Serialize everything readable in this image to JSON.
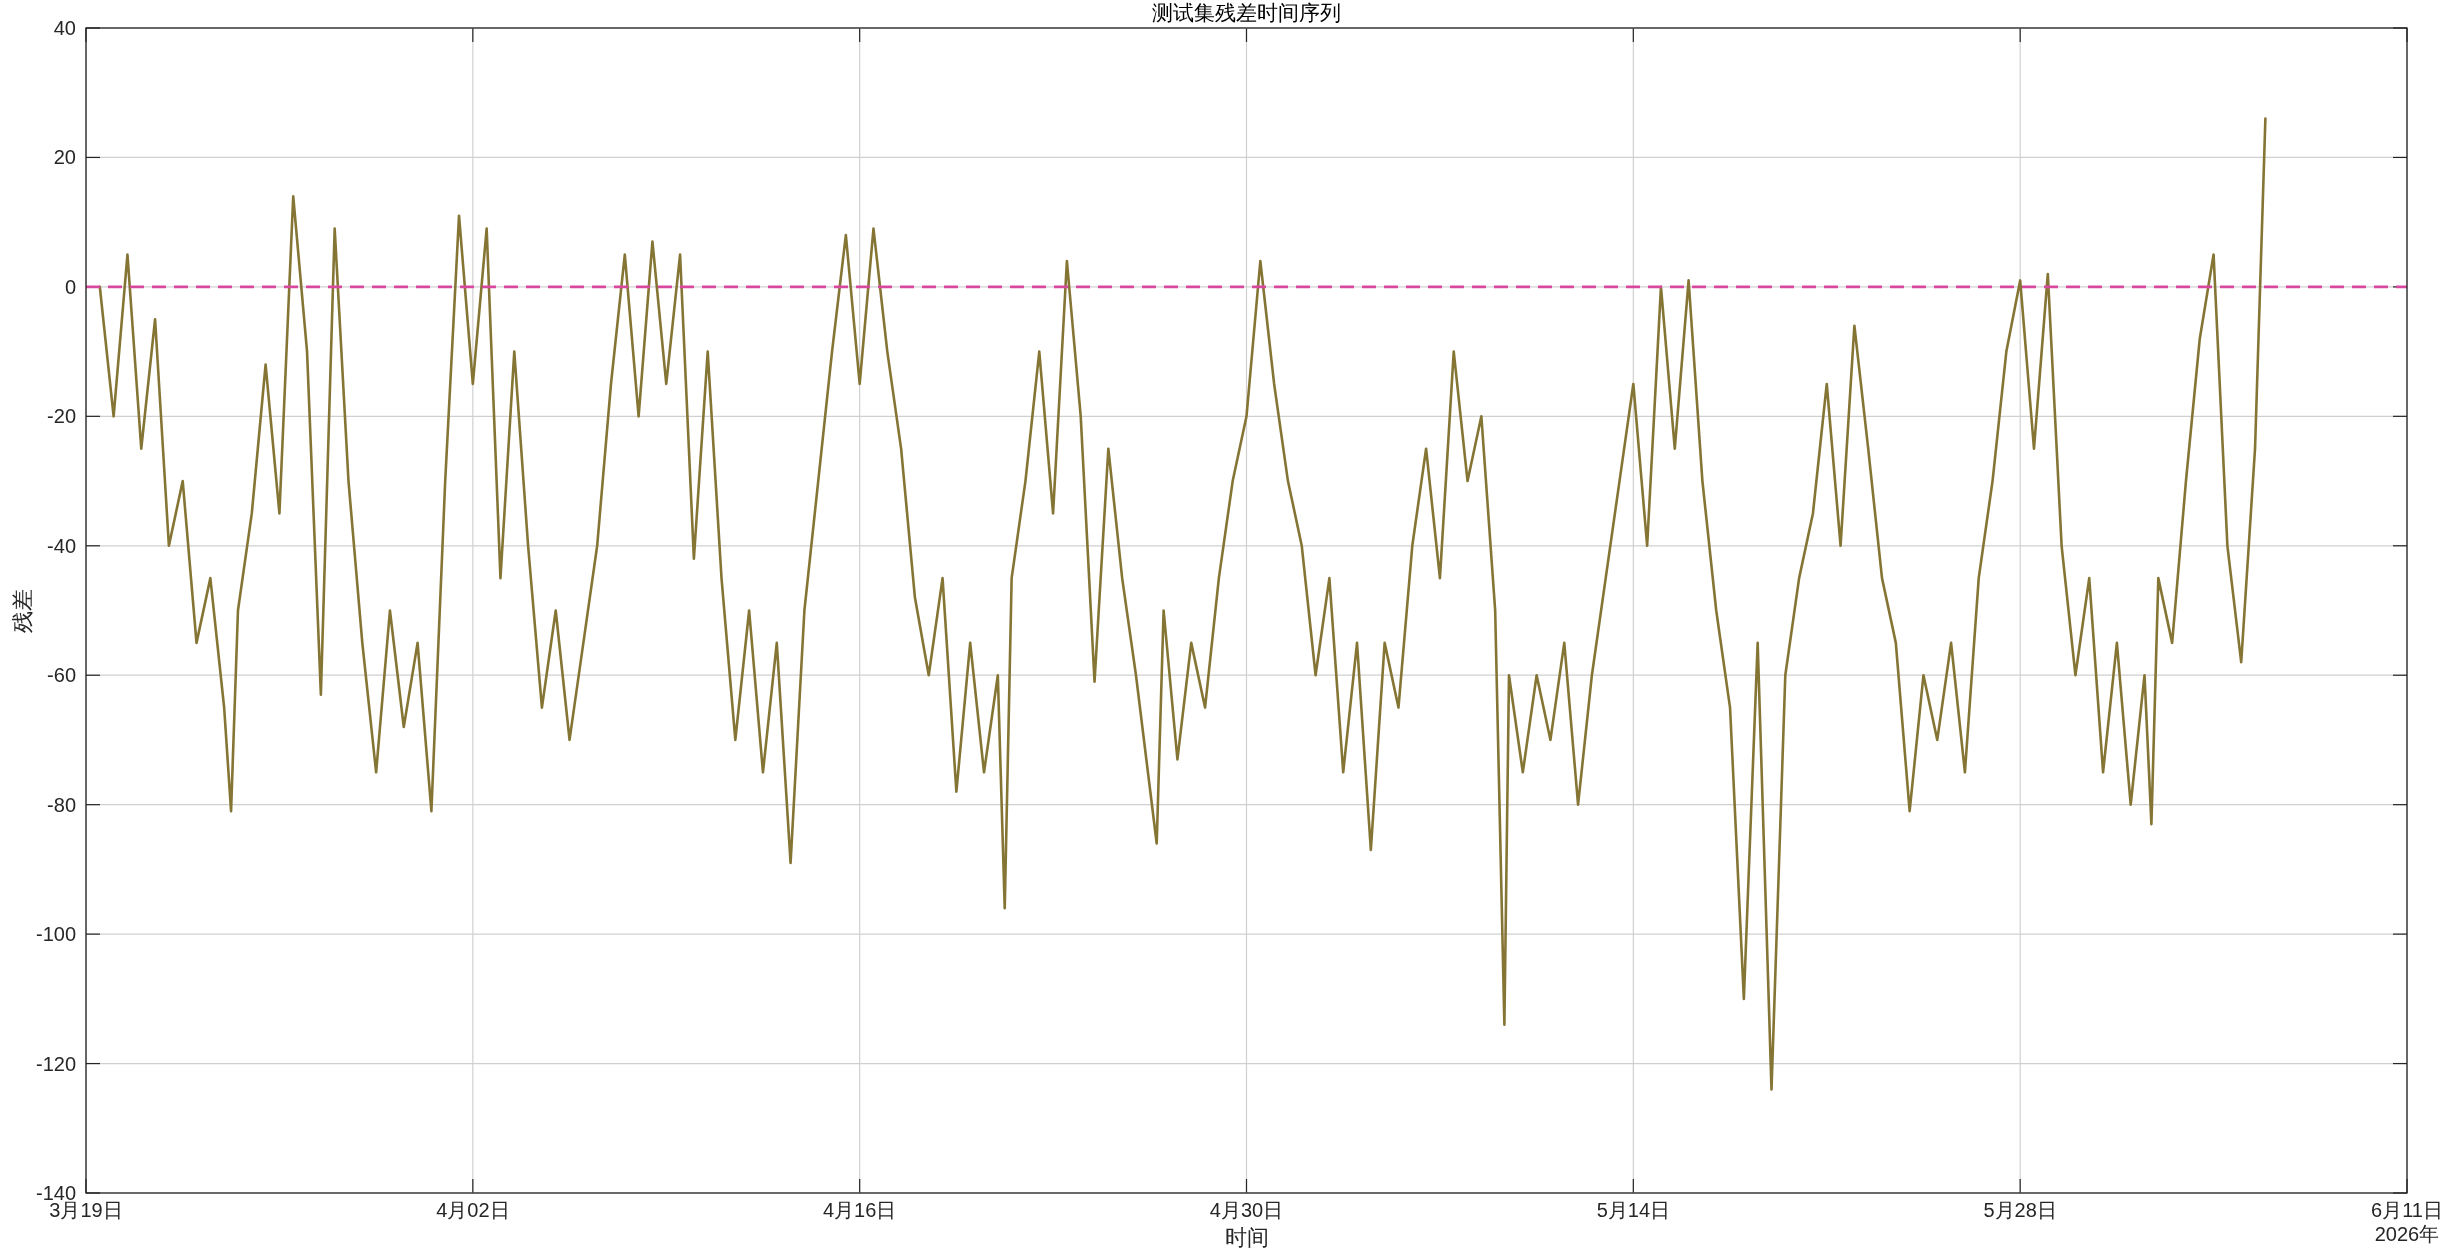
{
  "chart_data": {
    "type": "line",
    "title": "测试集残差时间序列",
    "xlabel": "时间",
    "ylabel": "残差",
    "annotations": [
      "2026年"
    ],
    "xlim": [
      "2026-03-19",
      "2026-06-11"
    ],
    "xticks": [
      {
        "value": "2026-03-19",
        "label": "3月19日"
      },
      {
        "value": "2026-04-02",
        "label": "4月02日"
      },
      {
        "value": "2026-04-16",
        "label": "4月16日"
      },
      {
        "value": "2026-04-30",
        "label": "4月30日"
      },
      {
        "value": "2026-05-14",
        "label": "5月14日"
      },
      {
        "value": "2026-05-28",
        "label": "5月28日"
      },
      {
        "value": "2026-06-11",
        "label": "6月11日"
      }
    ],
    "ylim": [
      -140,
      40
    ],
    "yticks": [
      -140,
      -120,
      -100,
      -80,
      -60,
      -40,
      -20,
      0,
      20,
      40
    ],
    "grid": true,
    "line_style": "solid",
    "marker": "none",
    "ref_lines": [
      {
        "axis": "y",
        "value": 0,
        "color": "#d9489f",
        "line_style": "dashed"
      }
    ],
    "x": [
      "2026-03-19T12:00",
      "2026-03-20T00:00",
      "2026-03-20T12:00",
      "2026-03-21T00:00",
      "2026-03-21T12:00",
      "2026-03-22T00:00",
      "2026-03-22T12:00",
      "2026-03-23T00:00",
      "2026-03-23T12:00",
      "2026-03-24T00:00",
      "2026-03-24T06:00",
      "2026-03-24T12:00",
      "2026-03-25T00:00",
      "2026-03-25T12:00",
      "2026-03-26T00:00",
      "2026-03-26T12:00",
      "2026-03-27T00:00",
      "2026-03-27T12:00",
      "2026-03-28T00:00",
      "2026-03-28T12:00",
      "2026-03-29T00:00",
      "2026-03-29T12:00",
      "2026-03-30T00:00",
      "2026-03-30T12:00",
      "2026-03-31T00:00",
      "2026-03-31T12:00",
      "2026-04-01T00:00",
      "2026-04-01T12:00",
      "2026-04-02T00:00",
      "2026-04-02T12:00",
      "2026-04-03T00:00",
      "2026-04-03T12:00",
      "2026-04-04T00:00",
      "2026-04-04T12:00",
      "2026-04-05T00:00",
      "2026-04-05T12:00",
      "2026-04-06T00:00",
      "2026-04-06T12:00",
      "2026-04-07T00:00",
      "2026-04-07T12:00",
      "2026-04-08T00:00",
      "2026-04-08T12:00",
      "2026-04-09T00:00",
      "2026-04-09T12:00",
      "2026-04-10T00:00",
      "2026-04-10T12:00",
      "2026-04-11T00:00",
      "2026-04-11T12:00",
      "2026-04-12T00:00",
      "2026-04-12T12:00",
      "2026-04-13T00:00",
      "2026-04-13T12:00",
      "2026-04-14T00:00",
      "2026-04-14T12:00",
      "2026-04-15T00:00",
      "2026-04-15T12:00",
      "2026-04-16T00:00",
      "2026-04-16T12:00",
      "2026-04-17T00:00",
      "2026-04-17T12:00",
      "2026-04-18T00:00",
      "2026-04-18T12:00",
      "2026-04-19T00:00",
      "2026-04-19T12:00",
      "2026-04-20T00:00",
      "2026-04-20T12:00",
      "2026-04-21T00:00",
      "2026-04-21T06:00",
      "2026-04-21T12:00",
      "2026-04-22T00:00",
      "2026-04-22T12:00",
      "2026-04-23T00:00",
      "2026-04-23T12:00",
      "2026-04-24T00:00",
      "2026-04-24T12:00",
      "2026-04-25T00:00",
      "2026-04-25T12:00",
      "2026-04-26T00:00",
      "2026-04-26T18:00",
      "2026-04-27T00:00",
      "2026-04-27T12:00",
      "2026-04-28T00:00",
      "2026-04-28T12:00",
      "2026-04-29T00:00",
      "2026-04-29T12:00",
      "2026-04-30T00:00",
      "2026-04-30T12:00",
      "2026-05-01T00:00",
      "2026-05-01T12:00",
      "2026-05-02T00:00",
      "2026-05-02T12:00",
      "2026-05-03T00:00",
      "2026-05-03T12:00",
      "2026-05-04T00:00",
      "2026-05-04T12:00",
      "2026-05-05T00:00",
      "2026-05-05T12:00",
      "2026-05-06T00:00",
      "2026-05-06T12:00",
      "2026-05-07T00:00",
      "2026-05-07T12:00",
      "2026-05-08T00:00",
      "2026-05-08T12:00",
      "2026-05-09T00:00",
      "2026-05-09T08:00",
      "2026-05-09T12:00",
      "2026-05-10T00:00",
      "2026-05-10T12:00",
      "2026-05-11T00:00",
      "2026-05-11T12:00",
      "2026-05-12T00:00",
      "2026-05-12T12:00",
      "2026-05-13T00:00",
      "2026-05-13T12:00",
      "2026-05-14T00:00",
      "2026-05-14T12:00",
      "2026-05-15T00:00",
      "2026-05-15T12:00",
      "2026-05-16T00:00",
      "2026-05-16T12:00",
      "2026-05-17T00:00",
      "2026-05-17T12:00",
      "2026-05-18T00:00",
      "2026-05-18T12:00",
      "2026-05-19T00:00",
      "2026-05-19T12:00",
      "2026-05-20T00:00",
      "2026-05-20T12:00",
      "2026-05-21T00:00",
      "2026-05-21T12:00",
      "2026-05-22T00:00",
      "2026-05-22T12:00",
      "2026-05-23T00:00",
      "2026-05-23T12:00",
      "2026-05-24T00:00",
      "2026-05-24T12:00",
      "2026-05-25T00:00",
      "2026-05-25T12:00",
      "2026-05-26T00:00",
      "2026-05-26T12:00",
      "2026-05-27T00:00",
      "2026-05-27T12:00",
      "2026-05-28T00:00",
      "2026-05-28T12:00",
      "2026-05-29T00:00",
      "2026-05-29T12:00",
      "2026-05-30T00:00",
      "2026-05-30T12:00",
      "2026-05-31T00:00",
      "2026-05-31T12:00",
      "2026-06-01T00:00",
      "2026-06-01T12:00",
      "2026-06-01T18:00",
      "2026-06-02T00:00",
      "2026-06-02T12:00",
      "2026-06-03T00:00",
      "2026-06-03T12:00",
      "2026-06-04T00:00",
      "2026-06-04T12:00",
      "2026-06-05T00:00",
      "2026-06-05T12:00",
      "2026-06-05T21:00"
    ],
    "series": [
      {
        "color": "#857535",
        "values": [
          0,
          -20,
          5,
          -25,
          -5,
          -40,
          -30,
          -55,
          -45,
          -65,
          -81,
          -50,
          -35,
          -12,
          -35,
          14,
          -10,
          -63,
          9,
          -30,
          -55,
          -75,
          -50,
          -68,
          -55,
          -81,
          -30,
          11,
          -15,
          9,
          -45,
          -10,
          -40,
          -65,
          -50,
          -70,
          -55,
          -40,
          -15,
          5,
          -20,
          7,
          -15,
          5,
          -42,
          -10,
          -45,
          -70,
          -50,
          -75,
          -55,
          -89,
          -50,
          -30,
          -10,
          8,
          -15,
          9,
          -10,
          -25,
          -48,
          -60,
          -45,
          -78,
          -55,
          -75,
          -60,
          -96,
          -45,
          -30,
          -10,
          -35,
          4,
          -20,
          -61,
          -25,
          -45,
          -60,
          -86,
          -50,
          -73,
          -55,
          -65,
          -45,
          -30,
          -20,
          4,
          -15,
          -30,
          -40,
          -60,
          -45,
          -75,
          -55,
          -87,
          -55,
          -65,
          -40,
          -25,
          -45,
          -10,
          -30,
          -20,
          -50,
          -114,
          -60,
          -75,
          -60,
          -70,
          -55,
          -80,
          -60,
          -45,
          -30,
          -15,
          -40,
          0,
          -25,
          1,
          -30,
          -50,
          -65,
          -110,
          -55,
          -124,
          -60,
          -45,
          -35,
          -15,
          -40,
          -6,
          -25,
          -45,
          -55,
          -81,
          -60,
          -70,
          -55,
          -75,
          -45,
          -30,
          -10,
          1,
          -25,
          2,
          -40,
          -60,
          -45,
          -75,
          -55,
          -80,
          -60,
          -83,
          -45,
          -55,
          -30,
          -8,
          5,
          -40,
          -58,
          -25,
          26
        ]
      }
    ]
  }
}
